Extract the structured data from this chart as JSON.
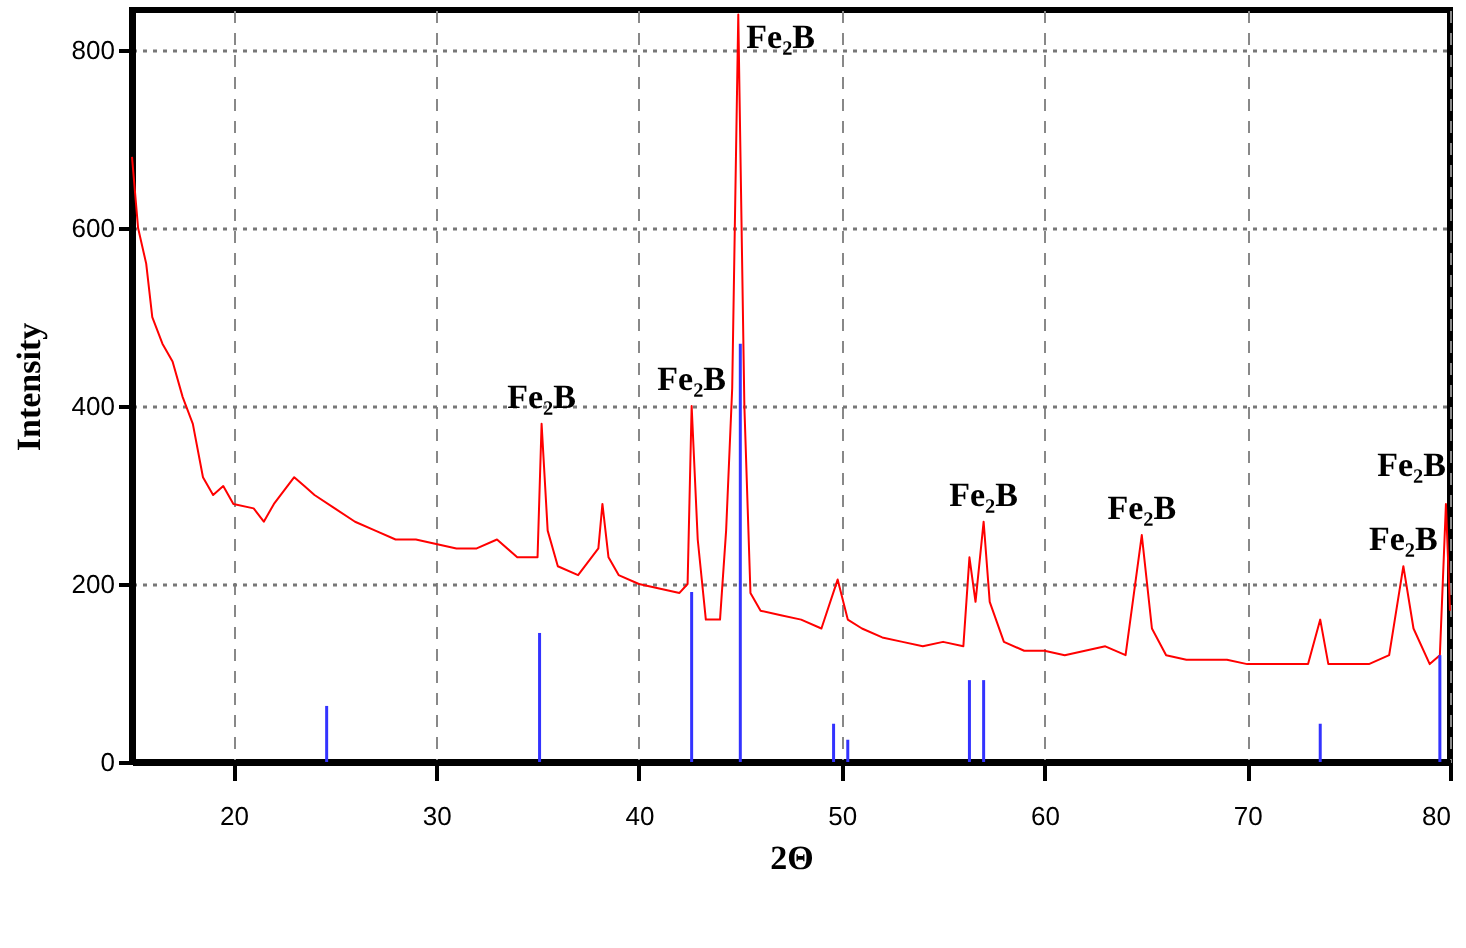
{
  "chart_data": {
    "type": "line",
    "xlabel": "2Θ",
    "ylabel": "Intensity",
    "xlim": [
      15,
      80
    ],
    "ylim": [
      0,
      845
    ],
    "xticks": [
      20,
      30,
      40,
      50,
      60,
      70,
      80
    ],
    "yticks": [
      0,
      200,
      400,
      600,
      800
    ],
    "grid": true,
    "series": [
      {
        "color": "#ff0000",
        "x": [
          15,
          15.3,
          15.7,
          16,
          16.5,
          17,
          17.5,
          18,
          18.5,
          19,
          19.5,
          20,
          21,
          21.5,
          22,
          23,
          23.5,
          24,
          25,
          26,
          27,
          28,
          29,
          30,
          31,
          32,
          33,
          34,
          35,
          35.2,
          35.5,
          36,
          37,
          38,
          38.2,
          38.5,
          39,
          40,
          41,
          42,
          42.4,
          42.6,
          42.9,
          43.3,
          44,
          44.3,
          44.6,
          44.9,
          45.2,
          45.5,
          46,
          47,
          48,
          49,
          49.8,
          50.3,
          51,
          52,
          53,
          54,
          55,
          56,
          56.3,
          56.6,
          57,
          57.3,
          58,
          59,
          60,
          61,
          62,
          63,
          64,
          64.8,
          65.3,
          66,
          67,
          68,
          69,
          70,
          71,
          72,
          73,
          73.6,
          74,
          75,
          76,
          77,
          77.7,
          78.2,
          79,
          79.5,
          79.8,
          80
        ],
        "values": [
          680,
          600,
          560,
          500,
          470,
          450,
          410,
          380,
          320,
          300,
          310,
          290,
          285,
          270,
          290,
          320,
          310,
          300,
          285,
          270,
          260,
          250,
          250,
          245,
          240,
          240,
          250,
          230,
          230,
          380,
          260,
          220,
          210,
          240,
          290,
          230,
          210,
          200,
          195,
          190,
          200,
          400,
          250,
          160,
          160,
          260,
          420,
          840,
          400,
          190,
          170,
          165,
          160,
          150,
          205,
          160,
          150,
          140,
          135,
          130,
          135,
          130,
          230,
          180,
          270,
          180,
          135,
          125,
          125,
          120,
          125,
          130,
          120,
          255,
          150,
          120,
          115,
          115,
          115,
          110,
          110,
          110,
          110,
          160,
          110,
          110,
          110,
          120,
          220,
          150,
          110,
          120,
          290,
          170
        ]
      },
      {
        "type": "bar",
        "color": "#3333ff",
        "x": [
          24.6,
          35.1,
          42.6,
          45.0,
          49.6,
          50.3,
          56.3,
          57.0,
          73.6,
          79.5
        ],
        "values": [
          63,
          145,
          191,
          470,
          43,
          25,
          92,
          92,
          43,
          120
        ]
      }
    ],
    "annotations": [
      {
        "text": "Fe₂B",
        "x": 35.2,
        "y": 380
      },
      {
        "text": "Fe₂B",
        "x": 42.6,
        "y": 400
      },
      {
        "text": "Fe₂B",
        "x": 44.9,
        "y": 840
      },
      {
        "text": "Fe₂B",
        "x": 57,
        "y": 270
      },
      {
        "text": "Fe₂B",
        "x": 64.8,
        "y": 255
      },
      {
        "text": "Fe₂B",
        "x": 79.8,
        "y": 290
      },
      {
        "text": "Fe₂B",
        "x": 77.7,
        "y": 220
      }
    ]
  }
}
